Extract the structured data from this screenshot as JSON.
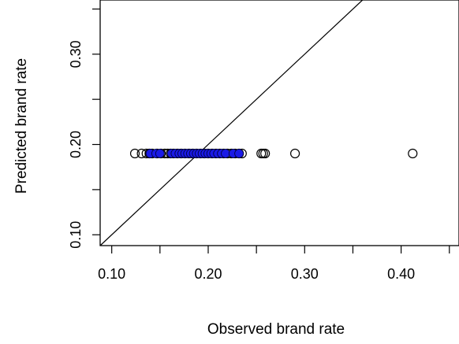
{
  "chart_data": {
    "type": "scatter",
    "title": "",
    "xlabel": "Observed brand rate",
    "ylabel": "Predicted brand rate",
    "xlim": [
      0.088,
      0.46
    ],
    "ylim": [
      0.088,
      0.36
    ],
    "x_ticks": [
      0.1,
      0.15,
      0.2,
      0.25,
      0.3,
      0.35,
      0.4,
      0.45
    ],
    "x_tick_labels": [
      "0.10",
      "",
      "0.20",
      "",
      "0.30",
      "",
      "0.40",
      ""
    ],
    "y_ticks": [
      0.1,
      0.15,
      0.2,
      0.25,
      0.3,
      0.35
    ],
    "y_tick_labels": [
      "0.10",
      "",
      "0.20",
      "",
      "0.30",
      ""
    ],
    "grid": false,
    "reference_line": {
      "type": "identity",
      "slope": 1,
      "intercept": 0
    },
    "series": [
      {
        "marker": "open-circle",
        "color": "#000000",
        "x": [
          0.124,
          0.131,
          0.136,
          0.139,
          0.142,
          0.147,
          0.151,
          0.155,
          0.158,
          0.161,
          0.164,
          0.168,
          0.172,
          0.176,
          0.18,
          0.184,
          0.188,
          0.192,
          0.196,
          0.2,
          0.204,
          0.208,
          0.212,
          0.216,
          0.22,
          0.224,
          0.228,
          0.232,
          0.235,
          0.255,
          0.257,
          0.259,
          0.29,
          0.412
        ],
        "y": [
          0.19,
          0.19,
          0.19,
          0.19,
          0.19,
          0.19,
          0.19,
          0.19,
          0.19,
          0.19,
          0.19,
          0.19,
          0.19,
          0.19,
          0.19,
          0.19,
          0.19,
          0.19,
          0.19,
          0.19,
          0.19,
          0.19,
          0.19,
          0.19,
          0.19,
          0.19,
          0.19,
          0.19,
          0.19,
          0.19,
          0.19,
          0.19,
          0.19,
          0.19
        ]
      },
      {
        "marker": "filled-circle",
        "color": "#1a1ae6",
        "x": [
          0.14,
          0.146,
          0.15,
          0.162,
          0.166,
          0.17,
          0.173,
          0.176,
          0.179,
          0.182,
          0.185,
          0.188,
          0.191,
          0.194,
          0.197,
          0.2,
          0.203,
          0.206,
          0.21,
          0.214,
          0.218,
          0.226,
          0.232
        ],
        "y": [
          0.19,
          0.19,
          0.19,
          0.19,
          0.19,
          0.19,
          0.19,
          0.19,
          0.19,
          0.19,
          0.19,
          0.19,
          0.19,
          0.19,
          0.19,
          0.19,
          0.19,
          0.19,
          0.19,
          0.19,
          0.19,
          0.19,
          0.19
        ]
      }
    ]
  }
}
